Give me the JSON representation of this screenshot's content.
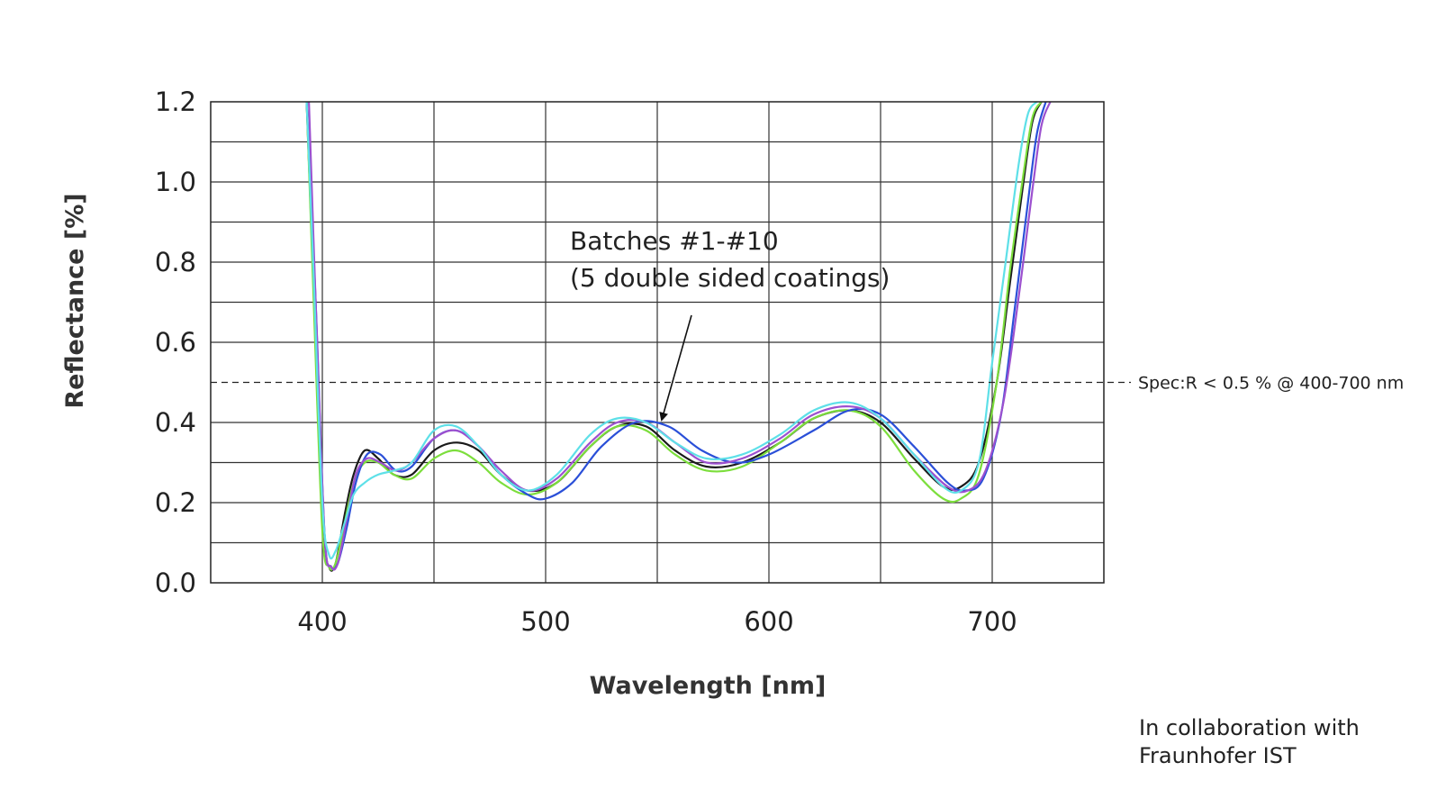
{
  "chart_data": {
    "type": "line",
    "xlabel": "Wavelength [nm]",
    "ylabel": "Reflectance [%]",
    "xlim": [
      350,
      750
    ],
    "ylim": [
      0,
      1.2
    ],
    "x_ticks": [
      400,
      500,
      600,
      700
    ],
    "y_ticks": [
      "0.0",
      "0.2",
      "0.4",
      "0.6",
      "0.8",
      "1.0",
      "1.2"
    ],
    "grid": true,
    "annotation": {
      "lines": [
        "Batches #1-#10",
        "(5 double sided coatings)"
      ],
      "arrow_to": [
        552,
        0.4
      ]
    },
    "reference_line": {
      "y": 0.5,
      "label": "Spec:R < 0.5 % @ 400-700 nm",
      "style": "dashed"
    },
    "series": [
      {
        "color": "#1a1a1a",
        "x": [
          393,
          396,
          400,
          403,
          406,
          410,
          414,
          419,
          425,
          432,
          440,
          450,
          460,
          470,
          480,
          492,
          505,
          520,
          532,
          545,
          558,
          572,
          588,
          605,
          620,
          636,
          650,
          665,
          678,
          686,
          694,
          702,
          708,
          714,
          718,
          722
        ],
        "y": [
          1.2,
          0.75,
          0.15,
          0.04,
          0.05,
          0.17,
          0.27,
          0.33,
          0.31,
          0.27,
          0.27,
          0.33,
          0.35,
          0.33,
          0.27,
          0.23,
          0.25,
          0.34,
          0.39,
          0.39,
          0.33,
          0.29,
          0.3,
          0.35,
          0.41,
          0.43,
          0.4,
          0.31,
          0.24,
          0.24,
          0.3,
          0.5,
          0.75,
          1.0,
          1.15,
          1.2
        ]
      },
      {
        "color": "#7cde3c",
        "x": [
          393,
          396,
          400,
          403,
          406,
          410,
          414,
          419,
          425,
          432,
          440,
          450,
          460,
          470,
          480,
          492,
          505,
          520,
          532,
          545,
          558,
          572,
          588,
          605,
          620,
          636,
          650,
          665,
          678,
          686,
          694,
          702,
          708,
          714,
          718,
          722
        ],
        "y": [
          1.2,
          0.72,
          0.13,
          0.04,
          0.05,
          0.15,
          0.25,
          0.3,
          0.3,
          0.27,
          0.26,
          0.31,
          0.33,
          0.3,
          0.25,
          0.22,
          0.25,
          0.34,
          0.39,
          0.38,
          0.32,
          0.28,
          0.29,
          0.35,
          0.41,
          0.43,
          0.39,
          0.28,
          0.21,
          0.21,
          0.27,
          0.5,
          0.78,
          1.02,
          1.16,
          1.2
        ]
      },
      {
        "color": "#2a4fd8",
        "x": [
          393,
          397,
          401,
          404,
          407,
          411,
          415,
          420,
          426,
          433,
          440,
          450,
          460,
          470,
          480,
          492,
          500,
          512,
          525,
          540,
          555,
          570,
          585,
          600,
          620,
          636,
          650,
          665,
          680,
          688,
          696,
          704,
          710,
          716,
          720,
          724
        ],
        "y": [
          1.2,
          0.7,
          0.12,
          0.04,
          0.05,
          0.14,
          0.25,
          0.32,
          0.32,
          0.28,
          0.29,
          0.36,
          0.38,
          0.34,
          0.27,
          0.22,
          0.21,
          0.25,
          0.34,
          0.4,
          0.39,
          0.33,
          0.3,
          0.32,
          0.38,
          0.43,
          0.42,
          0.34,
          0.25,
          0.23,
          0.26,
          0.42,
          0.68,
          0.95,
          1.12,
          1.2
        ]
      },
      {
        "color": "#9c50cf",
        "x": [
          394,
          397,
          401,
          404,
          407,
          411,
          415,
          420,
          426,
          433,
          440,
          450,
          460,
          470,
          480,
          492,
          505,
          520,
          532,
          545,
          558,
          572,
          588,
          605,
          620,
          636,
          650,
          665,
          680,
          689,
          697,
          705,
          712,
          718,
          722,
          726
        ],
        "y": [
          1.2,
          0.7,
          0.12,
          0.04,
          0.05,
          0.16,
          0.27,
          0.31,
          0.3,
          0.28,
          0.3,
          0.36,
          0.38,
          0.34,
          0.28,
          0.23,
          0.26,
          0.35,
          0.4,
          0.4,
          0.35,
          0.3,
          0.31,
          0.36,
          0.42,
          0.44,
          0.41,
          0.32,
          0.24,
          0.23,
          0.28,
          0.45,
          0.72,
          0.98,
          1.14,
          1.2
        ]
      },
      {
        "color": "#5ee0e8",
        "x": [
          393,
          396,
          400,
          403,
          406,
          410,
          414,
          419,
          425,
          432,
          440,
          450,
          460,
          470,
          480,
          492,
          505,
          520,
          532,
          545,
          558,
          572,
          588,
          605,
          620,
          636,
          650,
          665,
          678,
          686,
          694,
          700,
          706,
          712,
          716,
          720
        ],
        "y": [
          1.2,
          0.78,
          0.2,
          0.07,
          0.08,
          0.15,
          0.22,
          0.25,
          0.27,
          0.28,
          0.3,
          0.38,
          0.39,
          0.34,
          0.27,
          0.23,
          0.27,
          0.37,
          0.41,
          0.4,
          0.35,
          0.31,
          0.32,
          0.37,
          0.43,
          0.45,
          0.41,
          0.32,
          0.24,
          0.23,
          0.3,
          0.55,
          0.8,
          1.05,
          1.17,
          1.2
        ]
      }
    ]
  },
  "credit": {
    "line1": "In collaboration with",
    "line2": "Fraunhofer IST"
  }
}
